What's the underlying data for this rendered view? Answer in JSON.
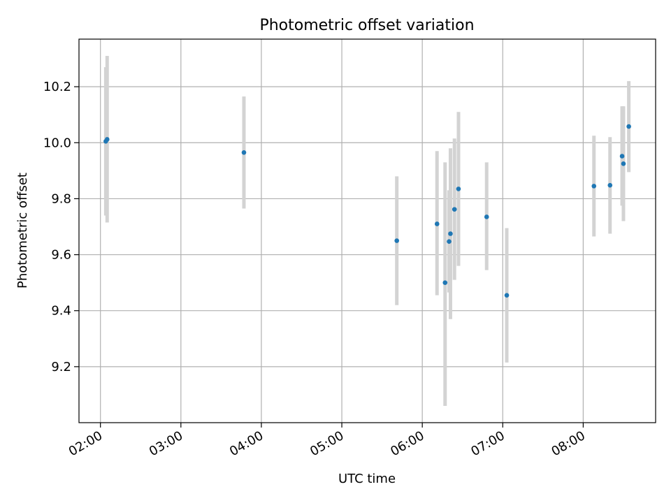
{
  "chart_data": {
    "type": "scatter",
    "title": "Photometric offset variation",
    "xlabel": "UTC time",
    "ylabel": "Photometric offset",
    "x_unit": "UTC hh:mm",
    "xlim": [
      "01:44",
      "08:54"
    ],
    "ylim": [
      9.0,
      10.37
    ],
    "x_ticks": [
      "02:00",
      "03:00",
      "04:00",
      "05:00",
      "06:00",
      "07:00",
      "08:00"
    ],
    "y_ticks": [
      "9.2",
      "9.4",
      "9.6",
      "9.8",
      "10.0",
      "10.2"
    ],
    "grid": true,
    "legend": "none",
    "marker_color": "#1f77b4",
    "errorbar_color": "#d3d3d3",
    "series": [
      {
        "points": [
          {
            "x": "02:04",
            "y": 10.005,
            "err_low": 9.74,
            "err_high": 10.27
          },
          {
            "x": "02:05",
            "y": 10.012,
            "err_low": 9.715,
            "err_high": 10.31
          },
          {
            "x": "03:47",
            "y": 9.965,
            "err_low": 9.765,
            "err_high": 10.165
          },
          {
            "x": "05:41",
            "y": 9.65,
            "err_low": 9.42,
            "err_high": 9.88
          },
          {
            "x": "06:11",
            "y": 9.71,
            "err_low": 9.455,
            "err_high": 9.97
          },
          {
            "x": "06:17",
            "y": 9.5,
            "err_low": 9.06,
            "err_high": 9.93
          },
          {
            "x": "06:20",
            "y": 9.647,
            "err_low": 9.465,
            "err_high": 9.83
          },
          {
            "x": "06:21",
            "y": 9.675,
            "err_low": 9.37,
            "err_high": 9.98
          },
          {
            "x": "06:24",
            "y": 9.762,
            "err_low": 9.51,
            "err_high": 10.015
          },
          {
            "x": "06:27",
            "y": 9.835,
            "err_low": 9.56,
            "err_high": 10.11
          },
          {
            "x": "06:48",
            "y": 9.735,
            "err_low": 9.545,
            "err_high": 9.93
          },
          {
            "x": "07:03",
            "y": 9.455,
            "err_low": 9.215,
            "err_high": 9.695
          },
          {
            "x": "08:08",
            "y": 9.845,
            "err_low": 9.665,
            "err_high": 10.025
          },
          {
            "x": "08:20",
            "y": 9.848,
            "err_low": 9.675,
            "err_high": 10.02
          },
          {
            "x": "08:29",
            "y": 9.952,
            "err_low": 9.775,
            "err_high": 10.13
          },
          {
            "x": "08:30",
            "y": 9.925,
            "err_low": 9.72,
            "err_high": 10.13
          },
          {
            "x": "08:34",
            "y": 10.058,
            "err_low": 9.895,
            "err_high": 10.22
          }
        ]
      }
    ]
  }
}
